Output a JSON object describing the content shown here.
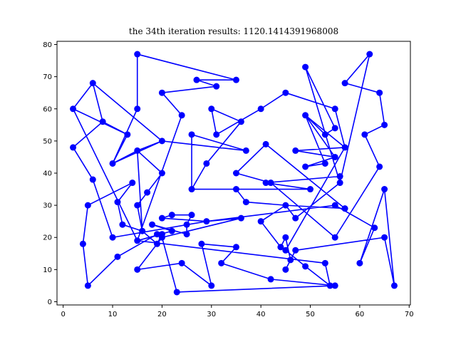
{
  "chart_data": {
    "type": "line",
    "title": "the 34th iteration results: 1120.1414391968008",
    "xlabel": "",
    "ylabel": "",
    "xlim": [
      -1.25,
      70.25
    ],
    "ylim": [
      -1.0,
      81.0
    ],
    "xticks": [
      0,
      10,
      20,
      30,
      40,
      50,
      60,
      70
    ],
    "yticks": [
      0,
      10,
      20,
      30,
      40,
      50,
      60,
      70,
      80
    ],
    "grid": false,
    "series": [
      {
        "color": "#0000ff",
        "marker": "circle",
        "points": [
          [
            15,
            77
          ],
          [
            35,
            69
          ],
          [
            27,
            69
          ],
          [
            31,
            67
          ],
          [
            20,
            65
          ],
          [
            24,
            58
          ],
          [
            15,
            19
          ],
          [
            25,
            27
          ],
          [
            18,
            24
          ],
          [
            25,
            24
          ],
          [
            18,
            18
          ],
          [
            15,
            22
          ],
          [
            35,
            35
          ],
          [
            56,
            39
          ],
          [
            21,
            22
          ],
          [
            29,
            25
          ],
          [
            36,
            26
          ],
          [
            44,
            17
          ],
          [
            45,
            30
          ],
          [
            32,
            32
          ],
          [
            16,
            10
          ],
          [
            24,
            12
          ],
          [
            25,
            3
          ],
          [
            21,
            20
          ],
          [
            10,
            14
          ],
          [
            2,
            48
          ],
          [
            10,
            56
          ],
          [
            13,
            52
          ],
          [
            2,
            60
          ],
          [
            6,
            68
          ],
          [
            20,
            50
          ],
          [
            37,
            47
          ],
          [
            26,
            52
          ],
          [
            26,
            35
          ],
          [
            35,
            35
          ],
          [
            36,
            56
          ],
          [
            41,
            49
          ],
          [
            49,
            42
          ],
          [
            53,
            43
          ],
          [
            47,
            47
          ],
          [
            57,
            48
          ],
          [
            49,
            58
          ],
          [
            55,
            45
          ],
          [
            53,
            52
          ],
          [
            49,
            73
          ],
          [
            56,
            37
          ],
          [
            55,
            40
          ]
        ]
      }
    ],
    "path": [
      [
        15,
        77
      ],
      [
        15,
        60
      ],
      [
        10,
        43
      ],
      [
        14,
        47
      ],
      [
        20,
        50
      ],
      [
        37,
        47
      ],
      [
        26,
        52
      ],
      [
        26,
        35
      ],
      [
        35,
        35
      ],
      [
        37,
        31
      ],
      [
        45,
        30
      ],
      [
        47,
        26
      ],
      [
        56,
        37
      ],
      [
        56,
        39
      ],
      [
        49,
        29
      ],
      [
        44,
        24
      ],
      [
        45,
        20
      ],
      [
        44,
        17
      ],
      [
        46,
        13
      ],
      [
        45,
        10
      ],
      [
        47,
        16
      ],
      [
        65,
        20
      ],
      [
        67,
        5
      ],
      [
        65,
        35
      ],
      [
        60,
        12
      ],
      [
        63,
        23
      ],
      [
        55,
        30
      ],
      [
        29,
        25
      ],
      [
        20,
        26
      ],
      [
        18,
        24
      ],
      [
        25,
        24
      ],
      [
        25,
        21
      ],
      [
        18,
        24
      ],
      [
        22,
        22
      ],
      [
        15,
        19
      ],
      [
        20,
        21
      ],
      [
        19,
        18
      ],
      [
        16,
        22
      ],
      [
        15,
        30
      ],
      [
        17,
        34
      ],
      [
        20,
        40
      ],
      [
        15,
        47
      ],
      [
        17,
        38
      ],
      [
        13,
        35
      ],
      [
        11,
        31
      ],
      [
        12,
        24
      ],
      [
        5,
        5
      ],
      [
        4,
        18
      ],
      [
        13,
        35
      ],
      [
        6,
        38
      ],
      [
        10,
        20
      ],
      [
        5,
        30
      ],
      [
        14,
        36
      ]
    ],
    "point_list": [
      [
        15,
        77
      ],
      [
        35,
        69
      ],
      [
        27,
        69
      ],
      [
        31,
        67
      ],
      [
        20,
        65
      ],
      [
        24,
        58
      ],
      [
        15,
        19
      ],
      [
        2,
        60
      ],
      [
        6,
        68
      ],
      [
        8,
        56
      ],
      [
        13,
        52
      ],
      [
        10,
        43
      ],
      [
        15,
        47
      ],
      [
        20,
        50
      ],
      [
        37,
        47
      ],
      [
        26,
        52
      ],
      [
        26,
        35
      ],
      [
        35,
        35
      ],
      [
        37,
        31
      ],
      [
        45,
        30
      ],
      [
        47,
        26
      ],
      [
        56,
        37
      ],
      [
        56,
        39
      ],
      [
        41,
        37
      ],
      [
        50,
        35
      ],
      [
        26,
        35
      ],
      [
        29,
        43
      ],
      [
        36,
        56
      ],
      [
        30,
        60
      ],
      [
        31,
        52
      ],
      [
        40,
        60
      ],
      [
        45,
        65
      ],
      [
        55,
        60
      ],
      [
        57,
        48
      ],
      [
        47,
        47
      ],
      [
        55,
        45
      ],
      [
        49,
        42
      ],
      [
        53,
        43
      ],
      [
        49,
        58
      ],
      [
        53,
        52
      ],
      [
        55,
        54
      ],
      [
        49,
        73
      ],
      [
        56,
        37
      ],
      [
        62,
        77
      ],
      [
        57,
        68
      ],
      [
        64,
        65
      ],
      [
        65,
        55
      ],
      [
        61,
        52
      ],
      [
        64,
        42
      ],
      [
        55,
        20
      ],
      [
        42,
        37
      ],
      [
        35,
        40
      ],
      [
        41,
        49
      ],
      [
        57,
        29
      ],
      [
        45,
        30
      ],
      [
        40,
        25
      ],
      [
        44,
        17
      ],
      [
        45,
        20
      ],
      [
        46,
        13
      ],
      [
        45,
        10
      ],
      [
        47,
        16
      ],
      [
        65,
        20
      ],
      [
        67,
        5
      ],
      [
        65,
        35
      ],
      [
        60,
        12
      ],
      [
        63,
        23
      ],
      [
        55,
        30
      ],
      [
        29,
        25
      ],
      [
        20,
        26
      ],
      [
        22,
        27
      ],
      [
        26,
        27
      ],
      [
        25,
        24
      ],
      [
        25,
        21
      ],
      [
        18,
        24
      ],
      [
        22,
        22
      ],
      [
        15,
        19
      ],
      [
        20,
        21
      ],
      [
        19,
        18
      ],
      [
        16,
        22
      ],
      [
        15,
        30
      ],
      [
        17,
        34
      ],
      [
        20,
        40
      ],
      [
        15,
        47
      ],
      [
        16,
        22
      ],
      [
        12,
        24
      ],
      [
        11,
        31
      ],
      [
        14,
        37
      ],
      [
        5,
        30
      ],
      [
        4,
        18
      ],
      [
        5,
        5
      ],
      [
        11,
        14
      ],
      [
        19,
        21
      ],
      [
        20,
        20
      ],
      [
        23,
        3
      ],
      [
        55,
        5
      ],
      [
        42,
        7
      ],
      [
        32,
        12
      ],
      [
        35,
        17
      ],
      [
        28,
        18
      ],
      [
        30,
        5
      ],
      [
        24,
        12
      ],
      [
        15,
        10
      ],
      [
        20,
        20
      ],
      [
        36,
        26
      ],
      [
        29,
        25
      ],
      [
        10,
        20
      ],
      [
        6,
        38
      ],
      [
        2,
        48
      ],
      [
        8,
        56
      ],
      [
        13,
        52
      ],
      [
        2,
        60
      ],
      [
        6,
        68
      ],
      [
        20,
        50
      ],
      [
        10,
        43
      ],
      [
        15,
        60
      ],
      [
        15,
        77
      ],
      [
        35,
        69
      ],
      [
        27,
        69
      ],
      [
        31,
        67
      ],
      [
        20,
        65
      ],
      [
        24,
        58
      ],
      [
        15,
        19
      ],
      [
        53,
        12
      ],
      [
        54,
        5
      ],
      [
        49,
        11
      ],
      [
        45,
        16
      ],
      [
        57,
        48
      ],
      [
        49,
        58
      ],
      [
        55,
        45
      ]
    ]
  }
}
